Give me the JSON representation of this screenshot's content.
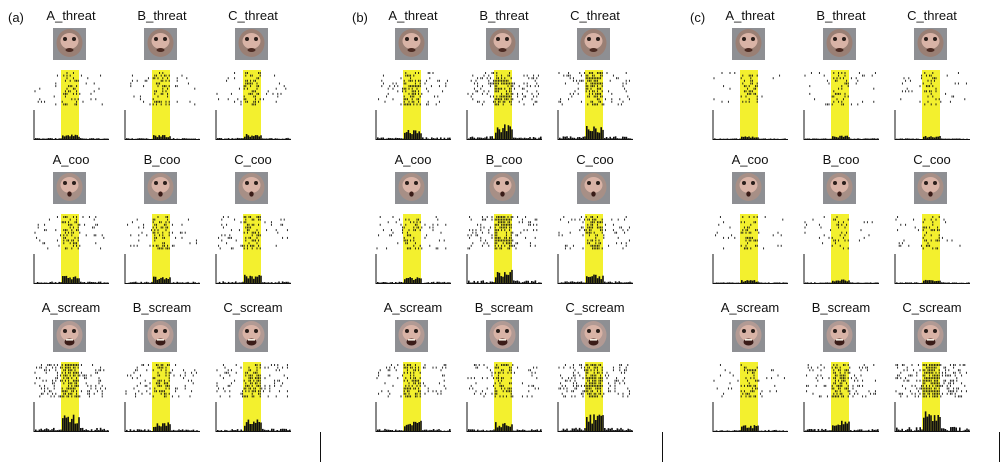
{
  "panels": [
    {
      "letter": "(a)",
      "rows": [
        [
          "A_threat",
          "B_threat",
          "C_threat"
        ],
        [
          "A_coo",
          "B_coo",
          "C_coo"
        ],
        [
          "A_scream",
          "B_scream",
          "C_scream"
        ]
      ],
      "activity": [
        [
          0.15,
          0.15,
          0.18
        ],
        [
          0.25,
          0.22,
          0.3
        ],
        [
          0.55,
          0.3,
          0.4
        ]
      ]
    },
    {
      "letter": "(b)",
      "rows": [
        [
          "A_threat",
          "B_threat",
          "C_threat"
        ],
        [
          "A_coo",
          "B_coo",
          "C_coo"
        ],
        [
          "A_scream",
          "B_scream",
          "C_scream"
        ]
      ],
      "activity": [
        [
          0.3,
          0.5,
          0.45
        ],
        [
          0.2,
          0.45,
          0.3
        ],
        [
          0.35,
          0.3,
          0.6
        ]
      ]
    },
    {
      "letter": "(c)",
      "rows": [
        [
          "A_threat",
          "B_threat",
          "C_threat"
        ],
        [
          "A_coo",
          "B_coo",
          "C_coo"
        ],
        [
          "A_scream",
          "B_scream",
          "C_scream"
        ]
      ],
      "activity": [
        [
          0.1,
          0.12,
          0.1
        ],
        [
          0.1,
          0.12,
          0.12
        ],
        [
          0.2,
          0.35,
          0.7
        ]
      ]
    }
  ],
  "colors": {
    "stimulus_window": "#f3f02e",
    "ink": "#111111",
    "threat_face": "#9a7f74",
    "coo_face": "#a78f86",
    "scream_face": "#b29a94"
  }
}
